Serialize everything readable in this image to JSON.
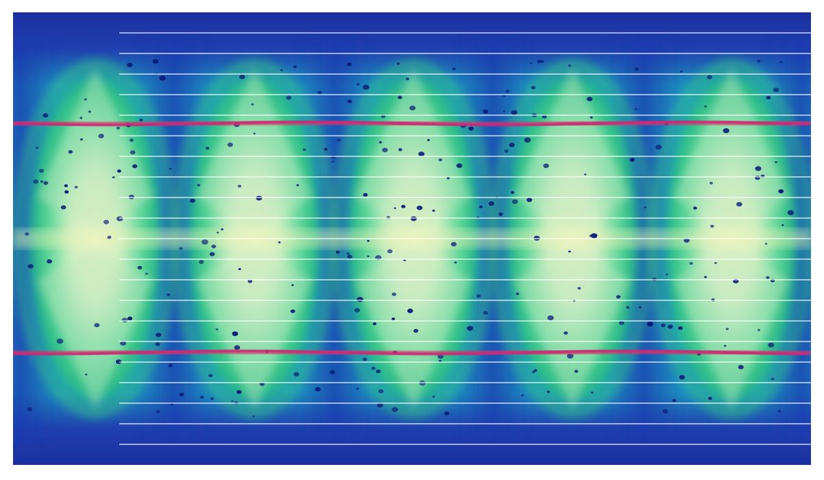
{
  "artwork": {
    "palette": {
      "deep_blue": "#1f3aa6",
      "mid_blue": "#1f5fc4",
      "teal": "#1aa3b8",
      "cyan": "#3fc7c6",
      "green": "#3fd07a",
      "pale_yellow": "#e9f2b8",
      "pale_green": "#bfe8c0",
      "magenta_stripe": "#e0306a",
      "dot_color": "#0c1f78",
      "line_color": "#ffffff",
      "frame_color": "#ffffff"
    },
    "horizontal_line_count": 21,
    "magenta_stripe_count": 2,
    "lobe_count": 5
  }
}
